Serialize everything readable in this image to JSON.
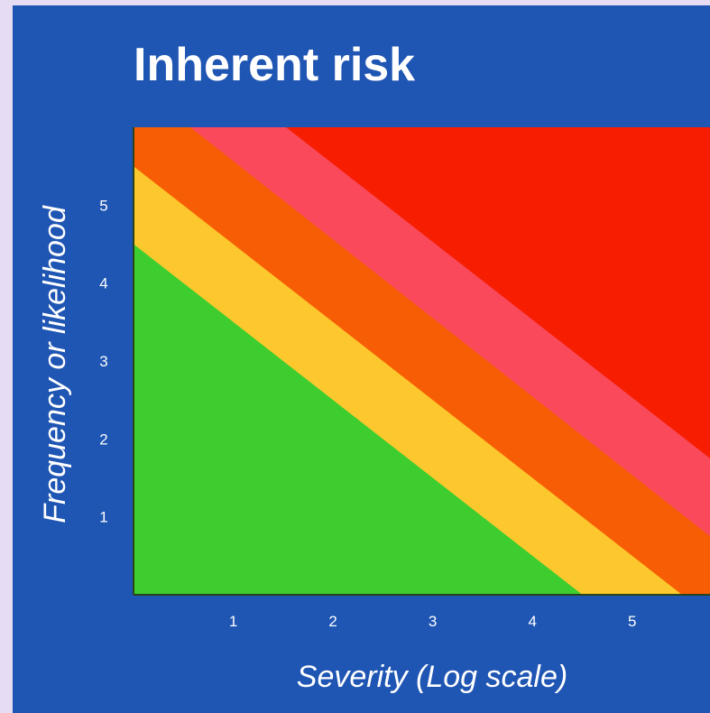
{
  "chart_data": {
    "type": "area",
    "title": "Inherent risk",
    "xlabel": "Severity (Log scale)",
    "ylabel": "Frequency or likelihood",
    "x_ticks": [
      1,
      2,
      3,
      4,
      5
    ],
    "y_ticks": [
      1,
      2,
      3,
      4,
      5
    ],
    "xlim": [
      0,
      5.78
    ],
    "ylim": [
      0,
      6.0
    ],
    "grid": false,
    "legend": "none",
    "zones": [
      {
        "color": "#3ecd2f",
        "boundary": [
          [
            0,
            4.5
          ],
          [
            4.5,
            0
          ]
        ]
      },
      {
        "color": "#fcc82d",
        "boundary": [
          [
            0,
            5.5
          ],
          [
            5.5,
            0
          ]
        ]
      },
      {
        "color": "#f75d05",
        "boundary": [
          [
            0.57,
            6.0
          ],
          [
            5.78,
            0.75
          ]
        ]
      },
      {
        "color": "#f9495b",
        "boundary": [
          [
            1.53,
            6.0
          ],
          [
            5.78,
            1.75
          ]
        ]
      },
      {
        "color": "#f71d00"
      }
    ]
  }
}
